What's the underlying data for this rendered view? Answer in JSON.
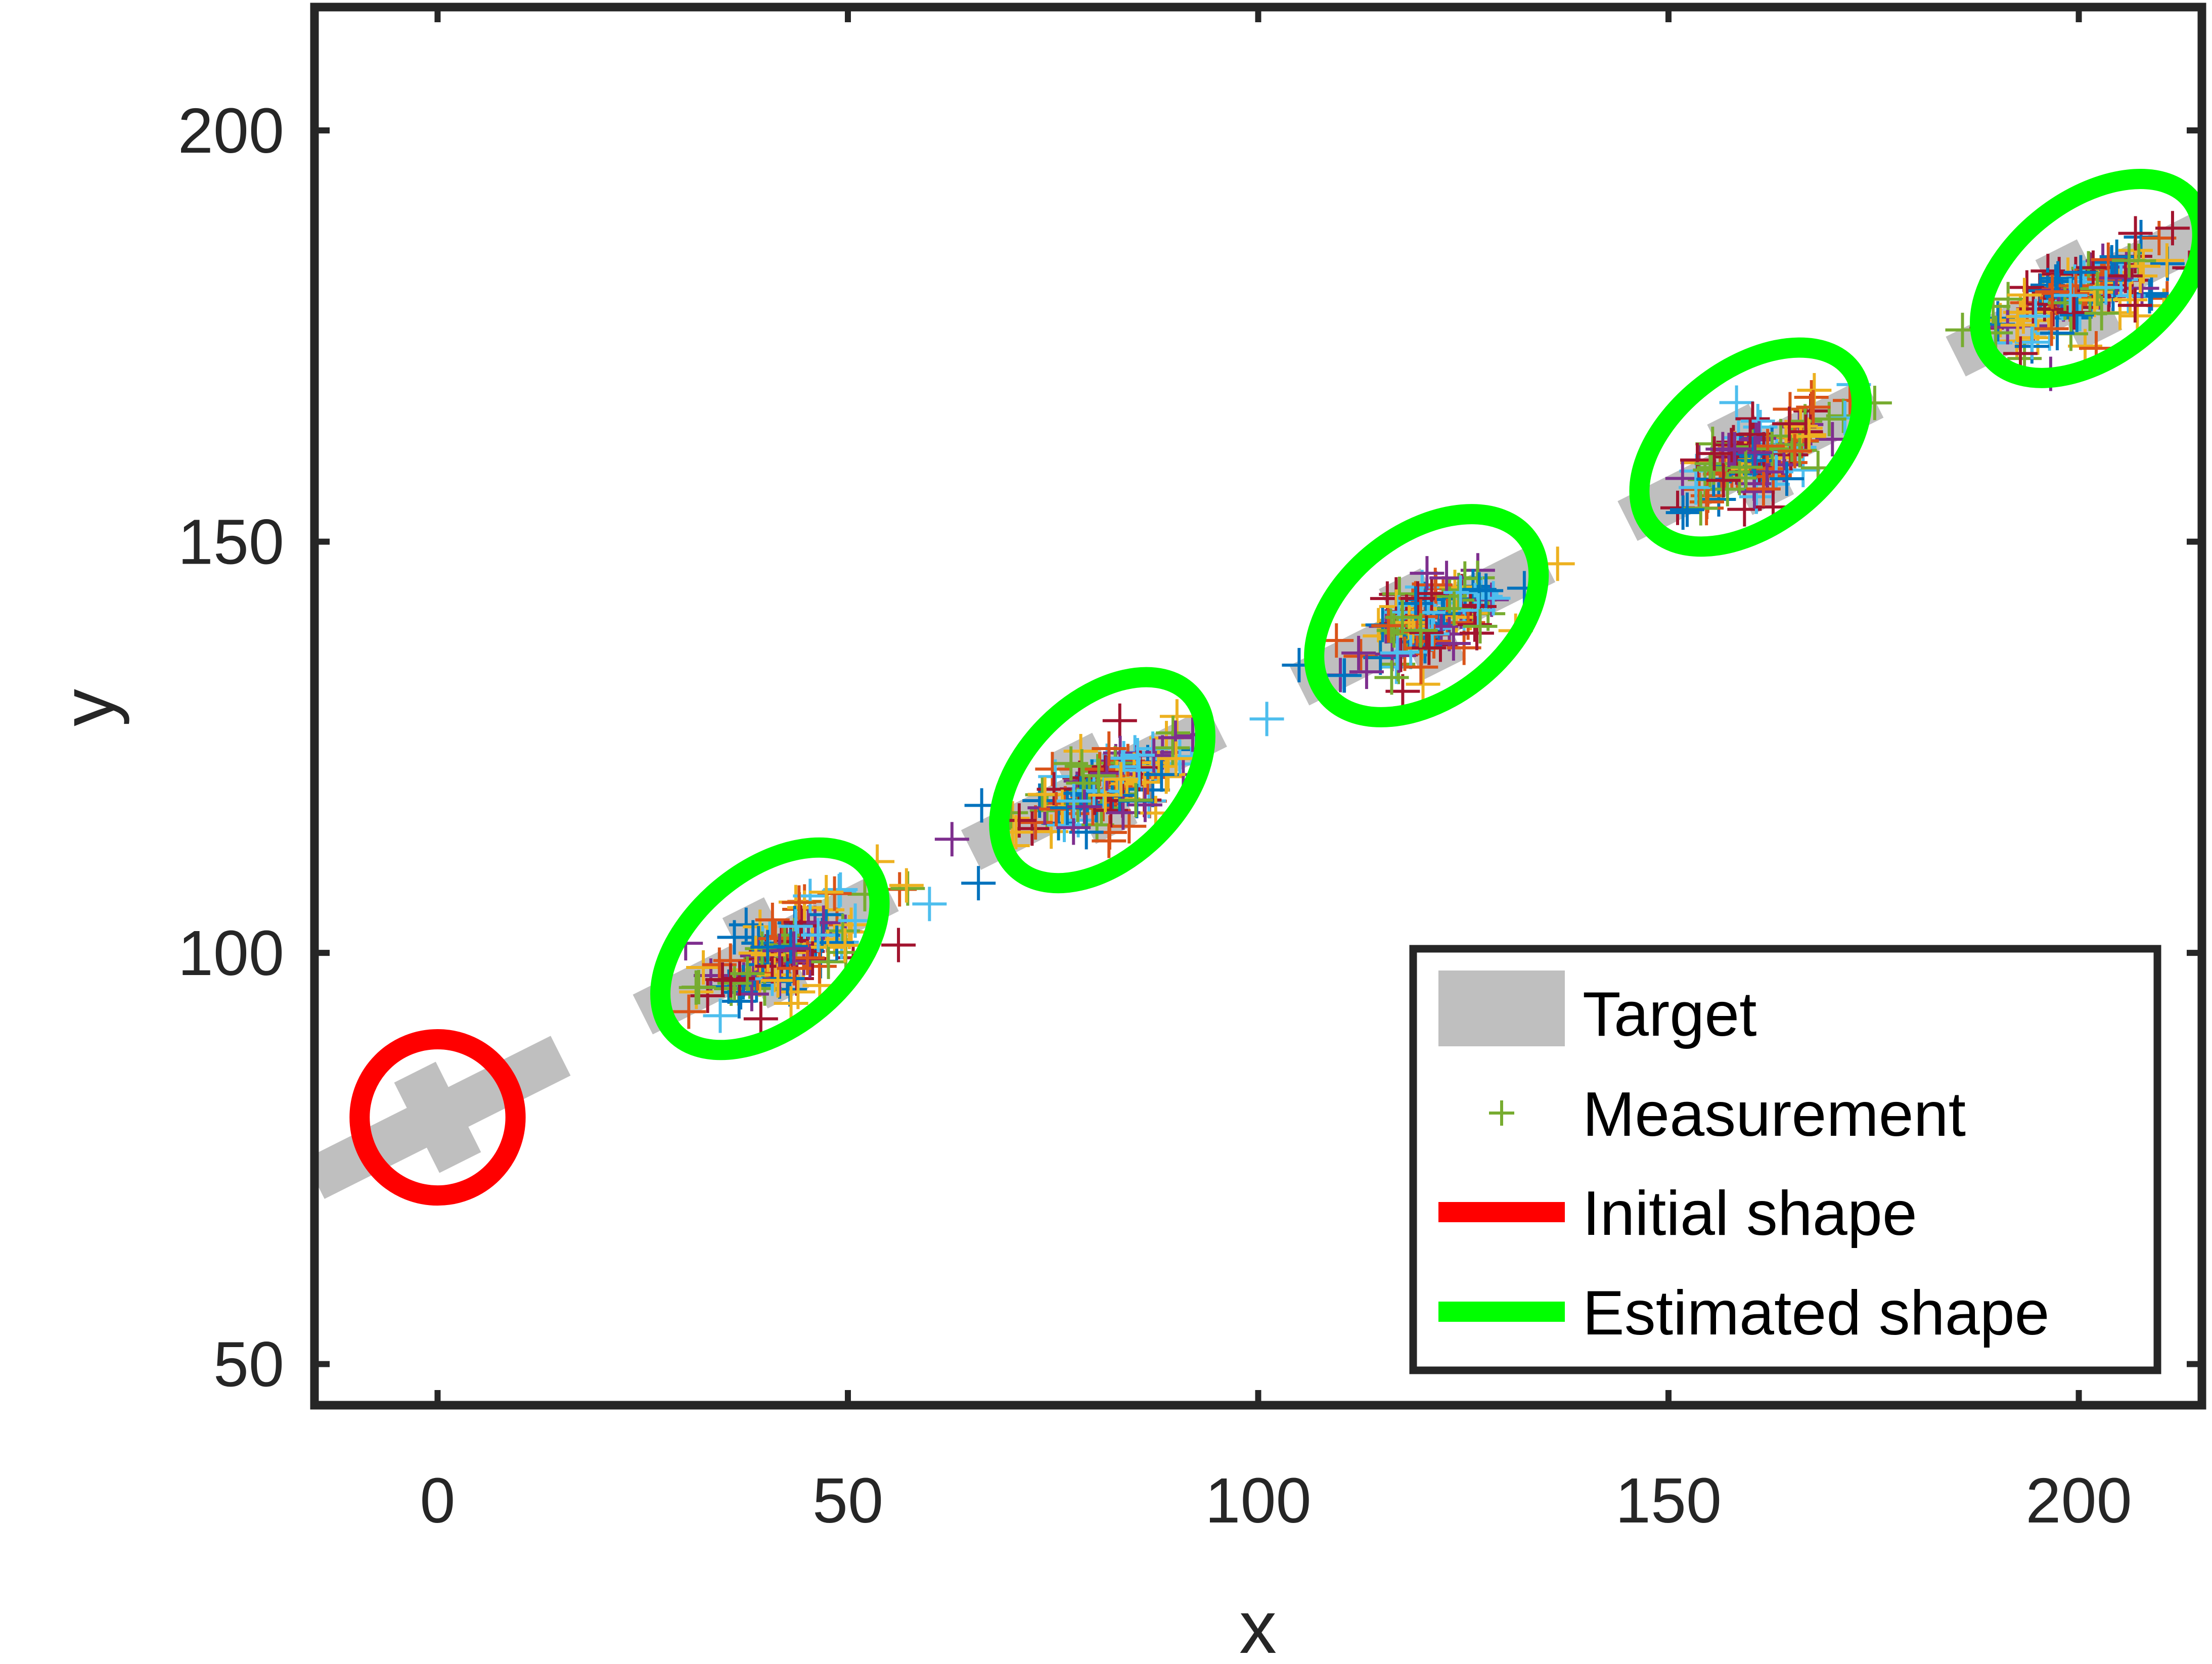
{
  "chart_data": {
    "type": "scatter",
    "title": "",
    "xlabel": "x",
    "ylabel": "y",
    "xlim": [
      -15,
      215
    ],
    "ylim": [
      45,
      215
    ],
    "x_ticks": [
      0,
      50,
      100,
      150,
      200
    ],
    "y_ticks": [
      50,
      100,
      150,
      200
    ],
    "grid": false,
    "legend_position": "bottom-right",
    "legend": [
      {
        "name": "Target",
        "color": "#bfbfbf",
        "marker": "thick-line"
      },
      {
        "name": "Measurement",
        "color": "#77ac30",
        "marker": "plus"
      },
      {
        "name": "Initial shape",
        "color": "#ff0000",
        "marker": "line"
      },
      {
        "name": "Estimated shape",
        "color": "#00ff00",
        "marker": "line"
      }
    ],
    "target": {
      "color": "#bfbfbf",
      "positions": [
        {
          "cx": 0,
          "cy": 80
        },
        {
          "cx": 40,
          "cy": 100
        },
        {
          "cx": 80,
          "cy": 120
        },
        {
          "cx": 120,
          "cy": 140
        },
        {
          "cx": 160,
          "cy": 160
        },
        {
          "cx": 200,
          "cy": 180
        }
      ]
    },
    "initial_shape": {
      "color": "#ff0000",
      "cx": 0,
      "cy": 80,
      "rx": 9.5,
      "ry": 9.5,
      "angle_deg": 0
    },
    "estimated_shapes": {
      "color": "#00ff00",
      "ellipses": [
        {
          "cx": 40.5,
          "cy": 100.5,
          "rx": 15.5,
          "ry": 9.5,
          "angle_deg": 40
        },
        {
          "cx": 81,
          "cy": 121,
          "rx": 15,
          "ry": 9.5,
          "angle_deg": 45
        },
        {
          "cx": 120.5,
          "cy": 141,
          "rx": 15.5,
          "ry": 10,
          "angle_deg": 38
        },
        {
          "cx": 160,
          "cy": 161.5,
          "rx": 15.5,
          "ry": 9.5,
          "angle_deg": 38
        },
        {
          "cx": 201.5,
          "cy": 182,
          "rx": 15.5,
          "ry": 9.5,
          "angle_deg": 38
        }
      ]
    },
    "measurements": {
      "colors": [
        "#0072bd",
        "#d95319",
        "#edb120",
        "#7e2f8e",
        "#77ac30",
        "#4dbeee",
        "#a2142f"
      ],
      "clusters": [
        {
          "cx": 42,
          "cy": 100,
          "sx": 6.5,
          "sy": 4.5
        },
        {
          "cx": 81,
          "cy": 120,
          "sx": 5.5,
          "sy": 4.2
        },
        {
          "cx": 120,
          "cy": 140,
          "sx": 5.5,
          "sy": 4.0
        },
        {
          "cx": 160,
          "cy": 160,
          "sx": 6.0,
          "sy": 4.0
        },
        {
          "cx": 200,
          "cy": 180,
          "sx": 6.5,
          "sy": 3.8
        }
      ]
    }
  }
}
